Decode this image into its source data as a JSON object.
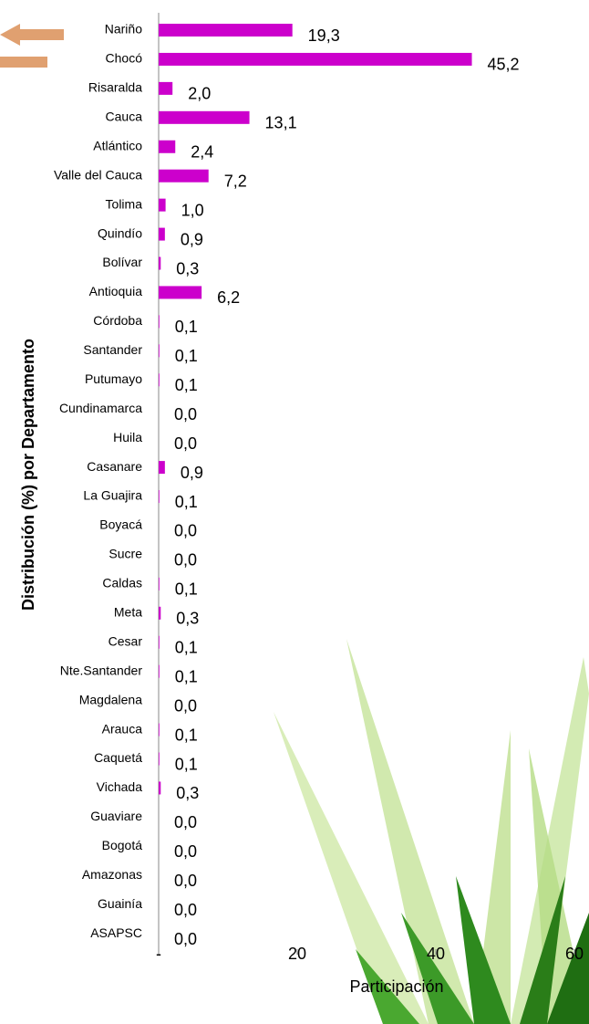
{
  "chart_data": {
    "type": "bar",
    "orientation": "horizontal",
    "x_label": "Participación",
    "y_label": "Distribución (%) por Departamento",
    "categories": [
      "Nariño",
      "Chocó",
      "Risaralda",
      "Cauca",
      "Atlántico",
      "Valle del Cauca",
      "Tolima",
      "Quindío",
      "Bolívar",
      "Antioquia",
      "Córdoba",
      "Santander",
      "Putumayo",
      "Cundinamarca",
      "Huila",
      "Casanare",
      "La Guajira",
      "Boyacá",
      "Sucre",
      "Caldas",
      "Meta",
      "Cesar",
      "Nte.Santander",
      "Magdalena",
      "Arauca",
      "Caquetá",
      "Vichada",
      "Guaviare",
      "Bogotá",
      "Amazonas",
      "Guainía",
      "ASAPSC"
    ],
    "values": [
      19.3,
      45.2,
      2.0,
      13.1,
      2.4,
      7.2,
      1.0,
      0.9,
      0.3,
      6.2,
      0.1,
      0.1,
      0.1,
      0.0,
      0.0,
      0.9,
      0.1,
      0.0,
      0.0,
      0.1,
      0.3,
      0.1,
      0.1,
      0.0,
      0.1,
      0.1,
      0.3,
      0.0,
      0.0,
      0.0,
      0.0,
      0.0
    ],
    "value_labels": [
      "19,3",
      "45,2",
      "2,0",
      "13,1",
      "2,4",
      "7,2",
      "1,0",
      "0,9",
      "0,3",
      "6,2",
      "0,1",
      "0,1",
      "0,1",
      "0,0",
      "0,0",
      "0,9",
      "0,1",
      "0,0",
      "0,0",
      "0,1",
      "0,3",
      "0,1",
      "0,1",
      "0,0",
      "0,1",
      "0,1",
      "0,3",
      "0,0",
      "0,0",
      "0,0",
      "0,0",
      "0,0"
    ],
    "color": "#cc00cc",
    "xlim": [
      0,
      60
    ],
    "xticks": [
      {
        "value": 0,
        "label": "-"
      },
      20,
      40,
      60
    ]
  }
}
